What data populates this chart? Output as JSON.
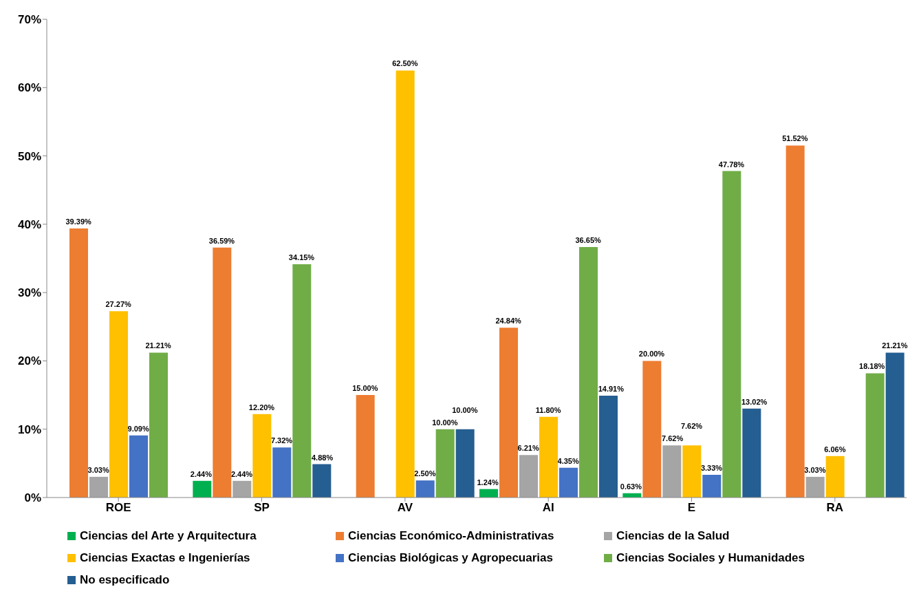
{
  "chart_data": {
    "type": "bar",
    "categories": [
      "ROE",
      "SP",
      "AV",
      "AI",
      "E",
      "RA"
    ],
    "series": [
      {
        "name": "Ciencias del Arte y Arquitectura",
        "color": "#00b050",
        "values": [
          null,
          2.44,
          null,
          1.24,
          0.63,
          null
        ],
        "value_labels": [
          null,
          "2.44%",
          null,
          "1.24%",
          "0.63%",
          null
        ]
      },
      {
        "name": "Ciencias Económico-Administrativas",
        "color": "#ed7d31",
        "values": [
          39.39,
          36.59,
          15.0,
          24.84,
          20.0,
          51.52
        ],
        "value_labels": [
          "39.39%",
          "36.59%",
          "15.00%",
          "24.84%",
          "20.00%",
          "51.52%"
        ]
      },
      {
        "name": "Ciencias de la Salud",
        "color": "#a5a5a5",
        "values": [
          3.03,
          2.44,
          null,
          6.21,
          7.62,
          3.03
        ],
        "value_labels": [
          "3.03%",
          "2.44%",
          null,
          "6.21%",
          "7.62%",
          "3.03%"
        ]
      },
      {
        "name": "Ciencias Exactas e Ingenierías",
        "color": "#ffc000",
        "values": [
          27.27,
          12.2,
          62.5,
          11.8,
          7.62,
          6.06
        ],
        "value_labels": [
          "27.27%",
          "12.20%",
          "62.50%",
          "11.80%",
          "7.62%",
          "6.06%"
        ]
      },
      {
        "name": "Ciencias Biológicas y Agropecuarias",
        "color": "#4472c4",
        "values": [
          9.09,
          7.32,
          2.5,
          4.35,
          3.33,
          null
        ],
        "value_labels": [
          "9.09%",
          "7.32%",
          "2.50%",
          "4.35%",
          "3.33%",
          null
        ]
      },
      {
        "name": "Ciencias Sociales y Humanidades",
        "color": "#70ad47",
        "values": [
          21.21,
          34.15,
          10.0,
          36.65,
          47.78,
          18.18
        ],
        "value_labels": [
          "21.21%",
          "34.15%",
          "10.00%",
          "36.65%",
          "47.78%",
          "18.18%"
        ]
      },
      {
        "name": "No especificado",
        "color": "#255e91",
        "values": [
          null,
          4.88,
          10.0,
          14.91,
          13.02,
          21.21
        ],
        "value_labels": [
          null,
          "4.88%",
          "10.00%",
          "14.91%",
          "13.02%",
          "21.21%"
        ]
      }
    ],
    "ylim": [
      0,
      70
    ],
    "yticks": [
      {
        "value": 0,
        "label": "0%"
      },
      {
        "value": 10,
        "label": "10%"
      },
      {
        "value": 20,
        "label": "20%"
      },
      {
        "value": 30,
        "label": "30%"
      },
      {
        "value": 40,
        "label": "40%"
      },
      {
        "value": 50,
        "label": "50%"
      },
      {
        "value": 60,
        "label": "60%"
      },
      {
        "value": 70,
        "label": "70%"
      }
    ],
    "grid": false,
    "legend": "bottom"
  }
}
